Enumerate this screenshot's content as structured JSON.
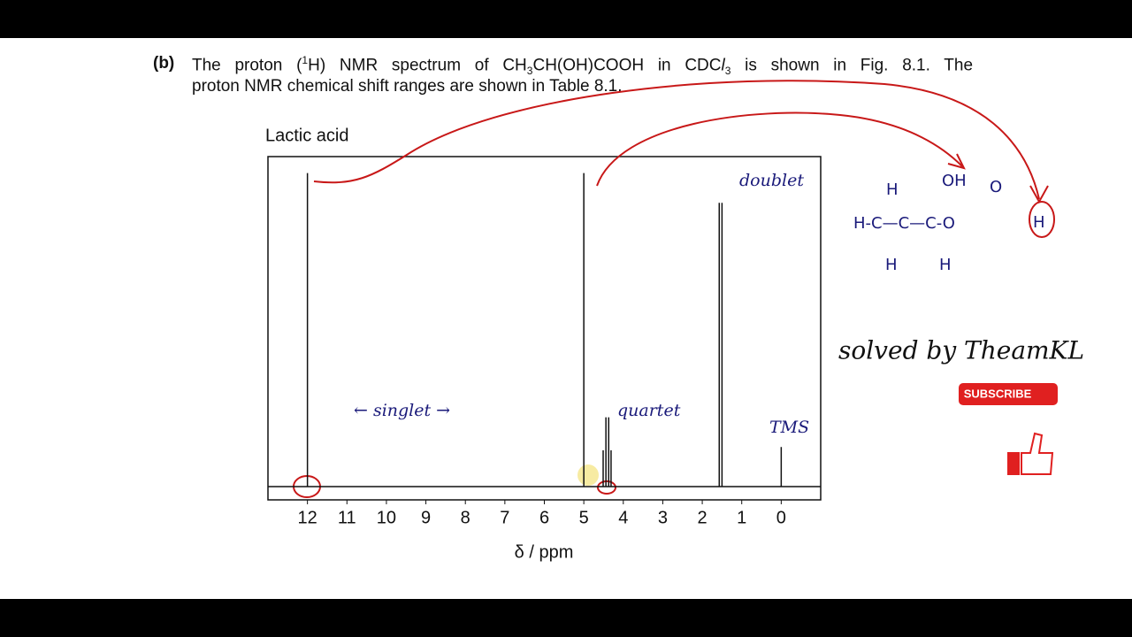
{
  "question": {
    "label": "(b)",
    "line1": [
      "The proton (",
      "1",
      "H) NMR spectrum of CH",
      "3",
      "CH(OH)COOH in CDC",
      "l",
      "3",
      " is shown in Fig. 8.1. The"
    ],
    "line2": "proton NMR chemical shift ranges are shown in Table 8.1."
  },
  "chart_data": {
    "type": "stem",
    "title": "Lactic acid",
    "x_label": "δ / ppm",
    "x": [
      12.0,
      5.0,
      4.51,
      4.44,
      4.37,
      4.31,
      1.57,
      1.5,
      0.0
    ],
    "values": [
      95,
      95,
      11,
      21,
      21,
      11,
      86,
      86,
      12
    ],
    "color": "#111111",
    "xlim": [
      13,
      -1
    ],
    "xticks": [
      12,
      11,
      10,
      9,
      8,
      7,
      6,
      5,
      4,
      3,
      2,
      1,
      0
    ],
    "ylim": [
      0,
      100
    ],
    "annotations": [
      "doublet",
      "← singlet →",
      "quartet",
      "TMS"
    ]
  },
  "structure": [
    "H",
    "OH",
    "O",
    "H-C—C—C-O",
    "H",
    "H",
    "H"
  ],
  "credit": "solved by TheamKL",
  "subscribe": "SUBSCRIBE"
}
